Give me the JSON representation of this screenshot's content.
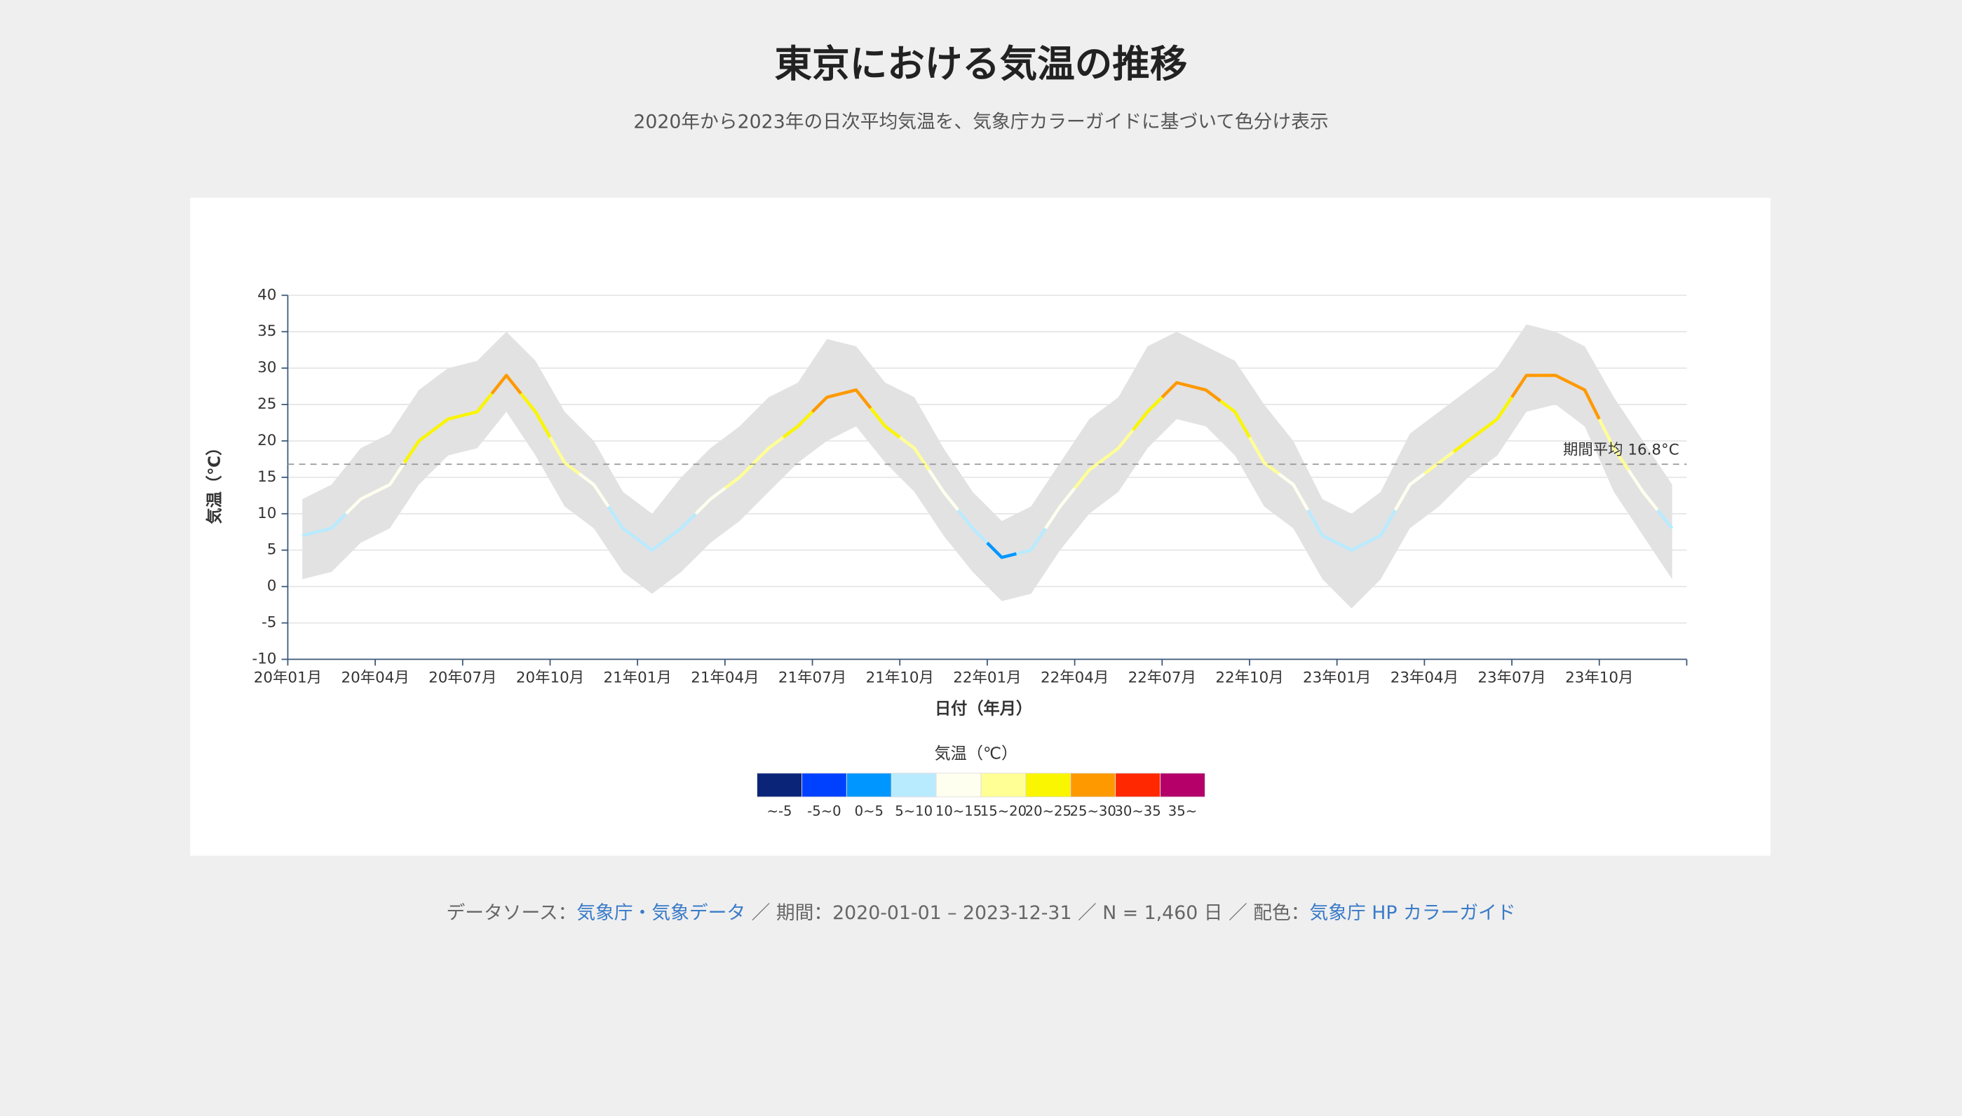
{
  "chart_data": {
    "type": "line",
    "title": "東京における気温の推移",
    "subtitle": "2020年から2023年の日次平均気温を、気象庁カラーガイドに基づいて色分け表示",
    "x_label": "日付（年月）",
    "y_label": "気温（℃）",
    "x": [
      "2020-01",
      "2020-02",
      "2020-03",
      "2020-04",
      "2020-05",
      "2020-06",
      "2020-07",
      "2020-08",
      "2020-09",
      "2020-10",
      "2020-11",
      "2020-12",
      "2021-01",
      "2021-02",
      "2021-03",
      "2021-04",
      "2021-05",
      "2021-06",
      "2021-07",
      "2021-08",
      "2021-09",
      "2021-10",
      "2021-11",
      "2021-12",
      "2022-01",
      "2022-02",
      "2022-03",
      "2022-04",
      "2022-05",
      "2022-06",
      "2022-07",
      "2022-08",
      "2022-09",
      "2022-10",
      "2022-11",
      "2022-12",
      "2023-01",
      "2023-02",
      "2023-03",
      "2023-04",
      "2023-05",
      "2023-06",
      "2023-07",
      "2023-08",
      "2023-09",
      "2023-10",
      "2023-11",
      "2023-12"
    ],
    "values": [
      7,
      8,
      12,
      14,
      20,
      23,
      24,
      29,
      24,
      17,
      14,
      8,
      5,
      8,
      12,
      15,
      19,
      22,
      26,
      27,
      22,
      19,
      13,
      8,
      4,
      5,
      11,
      16,
      19,
      24,
      28,
      27,
      24,
      17,
      14,
      7,
      5,
      7,
      14,
      17,
      20,
      23,
      29,
      29,
      27,
      19,
      13,
      8
    ],
    "high": [
      12,
      14,
      19,
      21,
      27,
      30,
      31,
      35,
      31,
      24,
      20,
      13,
      10,
      15,
      19,
      22,
      26,
      28,
      34,
      33,
      28,
      26,
      19,
      13,
      9,
      11,
      17,
      23,
      26,
      33,
      35,
      33,
      31,
      25,
      20,
      12,
      10,
      13,
      21,
      24,
      27,
      30,
      36,
      35,
      33,
      26,
      20,
      14
    ],
    "low": [
      1,
      2,
      6,
      8,
      14,
      18,
      19,
      24,
      18,
      11,
      8,
      2,
      -1,
      2,
      6,
      9,
      13,
      17,
      20,
      22,
      17,
      13,
      7,
      2,
      -2,
      -1,
      5,
      10,
      13,
      19,
      23,
      22,
      18,
      11,
      8,
      1,
      -3,
      1,
      8,
      11,
      15,
      18,
      24,
      25,
      22,
      13,
      7,
      1
    ],
    "xlim": [
      "2020-01",
      "2024-01"
    ],
    "xticks": [
      {
        "value": "2020-01",
        "label": "20年01月"
      },
      {
        "value": "2020-04",
        "label": "20年04月"
      },
      {
        "value": "2020-07",
        "label": "20年07月"
      },
      {
        "value": "2020-10",
        "label": "20年10月"
      },
      {
        "value": "2021-01",
        "label": "21年01月"
      },
      {
        "value": "2021-04",
        "label": "21年04月"
      },
      {
        "value": "2021-07",
        "label": "21年07月"
      },
      {
        "value": "2021-10",
        "label": "21年10月"
      },
      {
        "value": "2022-01",
        "label": "22年01月"
      },
      {
        "value": "2022-04",
        "label": "22年04月"
      },
      {
        "value": "2022-07",
        "label": "22年07月"
      },
      {
        "value": "2022-10",
        "label": "22年10月"
      },
      {
        "value": "2023-01",
        "label": "23年01月"
      },
      {
        "value": "2023-04",
        "label": "23年04月"
      },
      {
        "value": "2023-07",
        "label": "23年07月"
      },
      {
        "value": "2023-10",
        "label": "23年10月"
      }
    ],
    "ylim": [
      -10,
      40
    ],
    "yticks": [
      -10,
      -5,
      0,
      5,
      10,
      15,
      20,
      25,
      30,
      35,
      40
    ],
    "grid": true,
    "range_color": "#e2e2e2",
    "mean": 16.8,
    "mean_label": "期間平均 16.8°C",
    "legend": {
      "title": "気温（℃）",
      "thresholds": [
        -5,
        0,
        5,
        10,
        15,
        20,
        25,
        30,
        35
      ],
      "bins": [
        {
          "label": "~-5",
          "color": "#0a2478"
        },
        {
          "label": "-5~0",
          "color": "#0041ff"
        },
        {
          "label": "0~5",
          "color": "#0096ff"
        },
        {
          "label": "5~10",
          "color": "#b9ebff"
        },
        {
          "label": "10~15",
          "color": "#fffff0"
        },
        {
          "label": "15~20",
          "color": "#ffff96"
        },
        {
          "label": "20~25",
          "color": "#faf500"
        },
        {
          "label": "25~30",
          "color": "#ff9900"
        },
        {
          "label": "30~35",
          "color": "#ff2800"
        },
        {
          "label": "35~",
          "color": "#b40068"
        }
      ]
    }
  },
  "footer": {
    "parts": [
      {
        "text": "データソース：",
        "link": false
      },
      {
        "text": "気象庁・気象データ",
        "link": true
      },
      {
        "text": " ／ 期間：2020-01-01 – 2023-12-31 ／ N = 1,460 日 ／ 配色：",
        "link": false
      },
      {
        "text": "気象庁 HP カラーガイド",
        "link": true
      }
    ]
  }
}
